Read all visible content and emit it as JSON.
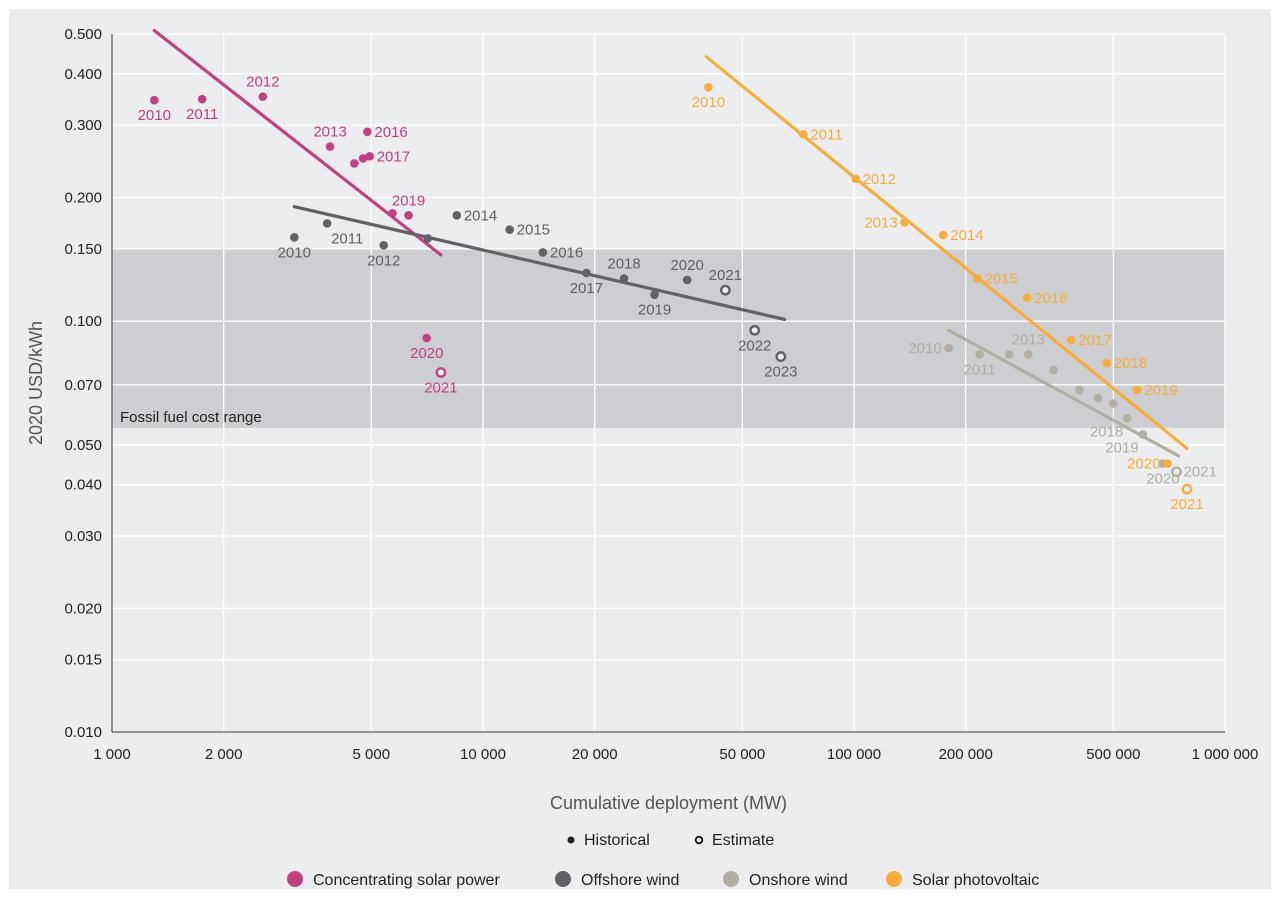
{
  "chart_data": {
    "type": "scatter",
    "title": "",
    "xlabel": "Cumulative deployment (MW)",
    "ylabel": "2020 USD/kWh",
    "x_scale": "log",
    "y_scale": "log",
    "xlim": [
      1000,
      1000000
    ],
    "ylim": [
      0.01,
      0.5
    ],
    "x_ticks": [
      1000,
      2000,
      5000,
      10000,
      20000,
      50000,
      100000,
      200000,
      500000,
      1000000
    ],
    "x_tick_labels": [
      "1 000",
      "2 000",
      "5 000",
      "10 000",
      "20 000",
      "50 000",
      "100 000",
      "200 000",
      "500 000",
      "1 000 000"
    ],
    "y_ticks": [
      0.01,
      0.015,
      0.02,
      0.03,
      0.04,
      0.05,
      0.07,
      0.1,
      0.15,
      0.2,
      0.3,
      0.4,
      0.5
    ],
    "y_tick_labels": [
      "0.010",
      "0.015",
      "0.020",
      "0.030",
      "0.040",
      "0.050",
      "0.070",
      "0.100",
      "0.150",
      "0.200",
      "0.300",
      "0.400",
      "0.500"
    ],
    "grid": true,
    "band": {
      "label": "Fossil fuel cost range",
      "y_range": [
        0.055,
        0.15
      ],
      "color": "#ccced1"
    },
    "marker_legend": [
      {
        "label": "Historical",
        "style": "filled"
      },
      {
        "label": "Estimate",
        "style": "open"
      }
    ],
    "series": [
      {
        "name": "Concentrating solar power",
        "color": "#c2407d",
        "trend": [
          [
            1300,
            0.51
          ],
          [
            7700,
            0.145
          ]
        ],
        "points": [
          {
            "x": 1300,
            "y": 0.345,
            "label": "2010",
            "pos": "below"
          },
          {
            "x": 1750,
            "y": 0.347,
            "label": "2011",
            "pos": "below"
          },
          {
            "x": 2550,
            "y": 0.352,
            "label": "2012",
            "pos": "above"
          },
          {
            "x": 3870,
            "y": 0.266,
            "label": "2013",
            "pos": "above"
          },
          {
            "x": 4500,
            "y": 0.242,
            "label": "",
            "pos": "none"
          },
          {
            "x": 4750,
            "y": 0.249,
            "label": "",
            "pos": "none"
          },
          {
            "x": 4950,
            "y": 0.252,
            "label": "2017",
            "pos": "right"
          },
          {
            "x": 4880,
            "y": 0.289,
            "label": "2016",
            "pos": "right"
          },
          {
            "x": 5700,
            "y": 0.183,
            "label": "",
            "pos": "none"
          },
          {
            "x": 6300,
            "y": 0.181,
            "label": "2019",
            "pos": "above"
          },
          {
            "x": 7050,
            "y": 0.091,
            "label": "2020",
            "pos": "below"
          },
          {
            "x": 7700,
            "y": 0.075,
            "label": "2021",
            "pos": "below",
            "estimate": true
          }
        ]
      },
      {
        "name": "Offshore wind",
        "color": "#606366",
        "trend": [
          [
            3100,
            0.19
          ],
          [
            65000,
            0.101
          ]
        ],
        "points": [
          {
            "x": 3100,
            "y": 0.16,
            "label": "2010",
            "pos": "below"
          },
          {
            "x": 3800,
            "y": 0.173,
            "label": "2011",
            "pos": "below-right"
          },
          {
            "x": 5400,
            "y": 0.153,
            "label": "2012",
            "pos": "below"
          },
          {
            "x": 7100,
            "y": 0.159,
            "label": "",
            "pos": "none"
          },
          {
            "x": 8500,
            "y": 0.181,
            "label": "2014",
            "pos": "right"
          },
          {
            "x": 11800,
            "y": 0.167,
            "label": "2015",
            "pos": "right"
          },
          {
            "x": 14500,
            "y": 0.147,
            "label": "2016",
            "pos": "right"
          },
          {
            "x": 19000,
            "y": 0.131,
            "label": "2017",
            "pos": "below"
          },
          {
            "x": 24000,
            "y": 0.127,
            "label": "2018",
            "pos": "above"
          },
          {
            "x": 29000,
            "y": 0.116,
            "label": "2019",
            "pos": "below"
          },
          {
            "x": 35500,
            "y": 0.126,
            "label": "2020",
            "pos": "above"
          },
          {
            "x": 45000,
            "y": 0.119,
            "label": "2021",
            "pos": "above",
            "estimate": true
          },
          {
            "x": 54000,
            "y": 0.095,
            "label": "2022",
            "pos": "below",
            "estimate": true
          },
          {
            "x": 63500,
            "y": 0.082,
            "label": "2023",
            "pos": "below",
            "estimate": true
          }
        ]
      },
      {
        "name": "Onshore wind",
        "color": "#b2aea2",
        "trend": [
          [
            180000,
            0.095
          ],
          [
            750000,
            0.047
          ]
        ],
        "points": [
          {
            "x": 180000,
            "y": 0.086,
            "label": "2010",
            "pos": "left"
          },
          {
            "x": 218000,
            "y": 0.083,
            "label": "2011",
            "pos": "below"
          },
          {
            "x": 262000,
            "y": 0.083,
            "label": "",
            "pos": "none"
          },
          {
            "x": 295000,
            "y": 0.083,
            "label": "2013",
            "pos": "above"
          },
          {
            "x": 345000,
            "y": 0.076,
            "label": "",
            "pos": "none"
          },
          {
            "x": 405000,
            "y": 0.068,
            "label": "",
            "pos": "none"
          },
          {
            "x": 455000,
            "y": 0.065,
            "label": "",
            "pos": "none"
          },
          {
            "x": 500000,
            "y": 0.063,
            "label": "",
            "pos": "none"
          },
          {
            "x": 545000,
            "y": 0.058,
            "label": "2018",
            "pos": "below-left"
          },
          {
            "x": 600000,
            "y": 0.053,
            "label": "2019",
            "pos": "below-left"
          },
          {
            "x": 680000,
            "y": 0.045,
            "label": "2020",
            "pos": "below"
          },
          {
            "x": 740000,
            "y": 0.043,
            "label": "2021",
            "pos": "right",
            "estimate": true
          }
        ]
      },
      {
        "name": "Solar photovoltaic",
        "color": "#f6ad3c",
        "trend": [
          [
            40000,
            0.44
          ],
          [
            790000,
            0.049
          ]
        ],
        "points": [
          {
            "x": 40500,
            "y": 0.371,
            "label": "2010",
            "pos": "below"
          },
          {
            "x": 73000,
            "y": 0.285,
            "label": "2011",
            "pos": "right"
          },
          {
            "x": 101000,
            "y": 0.222,
            "label": "2012",
            "pos": "right"
          },
          {
            "x": 137000,
            "y": 0.174,
            "label": "2013",
            "pos": "left"
          },
          {
            "x": 174000,
            "y": 0.162,
            "label": "2014",
            "pos": "right"
          },
          {
            "x": 215000,
            "y": 0.127,
            "label": "2015",
            "pos": "right"
          },
          {
            "x": 293000,
            "y": 0.114,
            "label": "2016",
            "pos": "right"
          },
          {
            "x": 385000,
            "y": 0.09,
            "label": "2017",
            "pos": "right"
          },
          {
            "x": 480000,
            "y": 0.079,
            "label": "2018",
            "pos": "right"
          },
          {
            "x": 580000,
            "y": 0.068,
            "label": "2019",
            "pos": "right"
          },
          {
            "x": 700000,
            "y": 0.045,
            "label": "2020",
            "pos": "left"
          },
          {
            "x": 790000,
            "y": 0.039,
            "label": "2021",
            "pos": "below",
            "estimate": true
          }
        ]
      }
    ]
  }
}
